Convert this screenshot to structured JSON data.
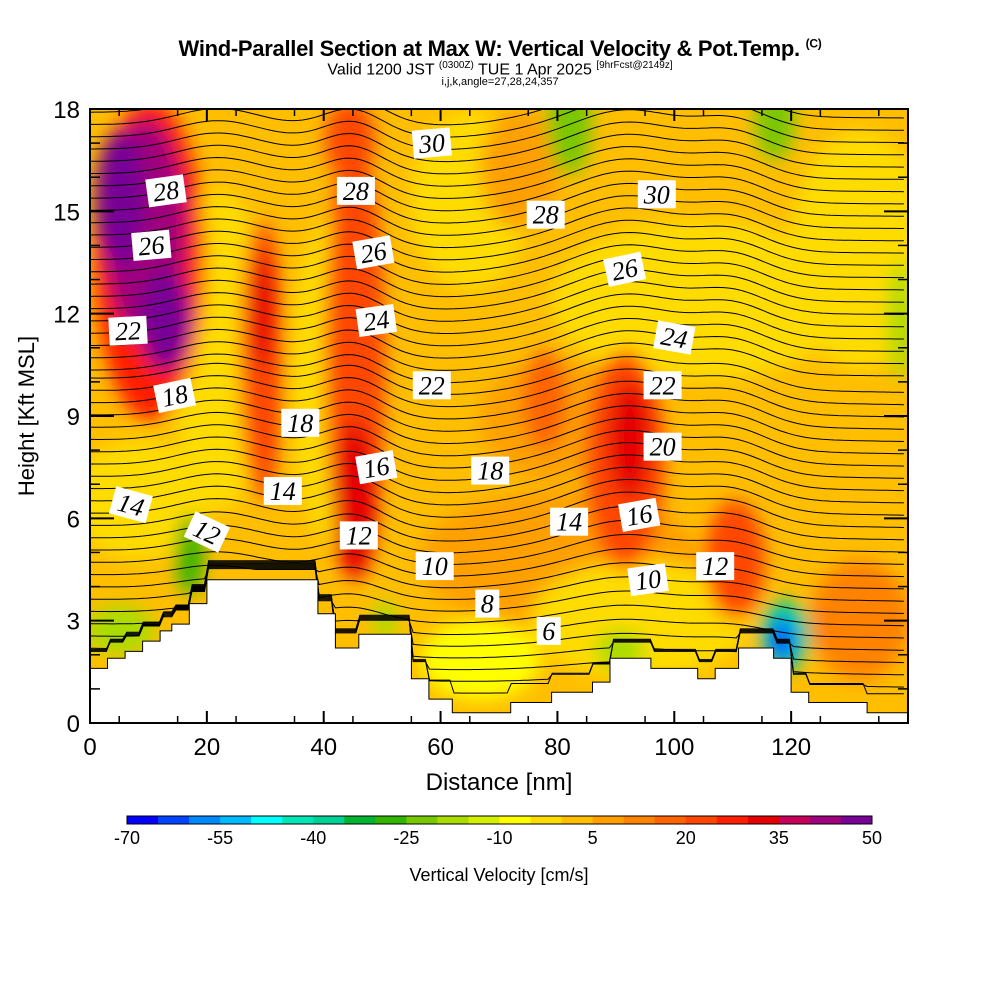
{
  "chart_data": {
    "type": "heatmap",
    "title": "Wind-Parallel Section at Max W: Vertical Velocity & Pot.Temp.",
    "title_mark": "(C)",
    "subtitle_main": "Valid 1200 JST",
    "subtitle_utc": "(0300Z)",
    "subtitle_date": "TUE 1 Apr 2025",
    "subtitle_fcst": "[9hrFcst@2149z]",
    "subtitle_indices": "i,j,k,angle=27,28,24,357",
    "xlabel": "Distance [nm]",
    "ylabel": "Height [Kft MSL]",
    "xlim": [
      0,
      140
    ],
    "ylim": [
      0,
      18
    ],
    "x_ticks": [
      "0",
      "20",
      "40",
      "60",
      "80",
      "100",
      "120"
    ],
    "y_ticks": [
      "0",
      "3",
      "6",
      "9",
      "12",
      "15",
      "18"
    ],
    "colorbar": {
      "label": "Vertical Velocity [cm/s]",
      "tick_labels": [
        "-70",
        "-55",
        "-40",
        "-25",
        "-10",
        "5",
        "20",
        "35",
        "50"
      ],
      "colors": [
        "#0000ff",
        "#0044ff",
        "#0088ff",
        "#00bbff",
        "#00ffff",
        "#00e6b4",
        "#00d296",
        "#00b432",
        "#32b400",
        "#78c800",
        "#aadc00",
        "#d2f000",
        "#ffff00",
        "#ffdc00",
        "#ffbe00",
        "#ffa000",
        "#ff8200",
        "#ff6400",
        "#ff4600",
        "#ff1e00",
        "#e60000",
        "#c8005a",
        "#a0007d",
        "#780096"
      ]
    },
    "terrain_profile_kft": [
      [
        0,
        1.6
      ],
      [
        3,
        1.6
      ],
      [
        3,
        1.9
      ],
      [
        6,
        1.9
      ],
      [
        6,
        2.1
      ],
      [
        9,
        2.1
      ],
      [
        9,
        2.4
      ],
      [
        12,
        2.4
      ],
      [
        12,
        2.7
      ],
      [
        14,
        2.7
      ],
      [
        14,
        2.9
      ],
      [
        17,
        2.9
      ],
      [
        17,
        3.5
      ],
      [
        20,
        3.5
      ],
      [
        20,
        4.2
      ],
      [
        39,
        4.2
      ],
      [
        39,
        3.2
      ],
      [
        42,
        3.2
      ],
      [
        42,
        2.2
      ],
      [
        46,
        2.2
      ],
      [
        46,
        2.6
      ],
      [
        55,
        2.6
      ],
      [
        55,
        1.3
      ],
      [
        58,
        1.3
      ],
      [
        58,
        0.7
      ],
      [
        62,
        0.7
      ],
      [
        62,
        0.3
      ],
      [
        72,
        0.3
      ],
      [
        72,
        0.6
      ],
      [
        79,
        0.6
      ],
      [
        79,
        0.9
      ],
      [
        86,
        0.9
      ],
      [
        86,
        1.2
      ],
      [
        89,
        1.2
      ],
      [
        89,
        1.9
      ],
      [
        96,
        1.9
      ],
      [
        96,
        1.6
      ],
      [
        104,
        1.6
      ],
      [
        104,
        1.3
      ],
      [
        107,
        1.3
      ],
      [
        107,
        1.6
      ],
      [
        111,
        1.6
      ],
      [
        111,
        2.2
      ],
      [
        117,
        2.2
      ],
      [
        117,
        1.9
      ],
      [
        120,
        1.9
      ],
      [
        120,
        0.9
      ],
      [
        123,
        0.9
      ],
      [
        123,
        0.6
      ],
      [
        133,
        0.6
      ],
      [
        133,
        0.3
      ],
      [
        140,
        0.3
      ]
    ],
    "theta_contour_labels": [
      {
        "text": "28",
        "x": 13,
        "y": 15.6,
        "angle": 8
      },
      {
        "text": "26",
        "x": 10.5,
        "y": 14.0,
        "angle": 5
      },
      {
        "text": "22",
        "x": 6.5,
        "y": 11.5,
        "angle": 3
      },
      {
        "text": "18",
        "x": 14.5,
        "y": 9.6,
        "angle": 12
      },
      {
        "text": "14",
        "x": 7,
        "y": 6.4,
        "angle": -15
      },
      {
        "text": "12",
        "x": 20,
        "y": 5.6,
        "angle": -25
      },
      {
        "text": "18",
        "x": 36,
        "y": 8.8,
        "angle": 0
      },
      {
        "text": "14",
        "x": 33,
        "y": 6.8,
        "angle": 0
      },
      {
        "text": "16",
        "x": 49,
        "y": 7.5,
        "angle": 10
      },
      {
        "text": "12",
        "x": 46,
        "y": 5.5,
        "angle": 0
      },
      {
        "text": "28",
        "x": 45.5,
        "y": 15.6,
        "angle": 0
      },
      {
        "text": "26",
        "x": 48.5,
        "y": 13.8,
        "angle": 10
      },
      {
        "text": "24",
        "x": 49,
        "y": 11.8,
        "angle": 8
      },
      {
        "text": "22",
        "x": 58.5,
        "y": 9.9,
        "angle": 0
      },
      {
        "text": "30",
        "x": 58.5,
        "y": 17.0,
        "angle": 5
      },
      {
        "text": "28",
        "x": 78,
        "y": 14.9,
        "angle": 0
      },
      {
        "text": "30",
        "x": 97,
        "y": 15.5,
        "angle": 0
      },
      {
        "text": "26",
        "x": 91.5,
        "y": 13.3,
        "angle": 12
      },
      {
        "text": "24",
        "x": 100,
        "y": 11.3,
        "angle": -10
      },
      {
        "text": "22",
        "x": 98,
        "y": 9.9,
        "angle": 0
      },
      {
        "text": "20",
        "x": 98,
        "y": 8.1,
        "angle": 0
      },
      {
        "text": "18",
        "x": 68.5,
        "y": 7.4,
        "angle": 0
      },
      {
        "text": "14",
        "x": 82,
        "y": 5.9,
        "angle": 0
      },
      {
        "text": "16",
        "x": 94,
        "y": 6.1,
        "angle": 10
      },
      {
        "text": "10",
        "x": 59,
        "y": 4.6,
        "angle": 0
      },
      {
        "text": "8",
        "x": 68,
        "y": 3.5,
        "angle": 0
      },
      {
        "text": "6",
        "x": 78.5,
        "y": 2.7,
        "angle": 0
      },
      {
        "text": "10",
        "x": 95.5,
        "y": 4.2,
        "angle": 8
      },
      {
        "text": "12",
        "x": 107,
        "y": 4.6,
        "angle": 0
      }
    ]
  }
}
